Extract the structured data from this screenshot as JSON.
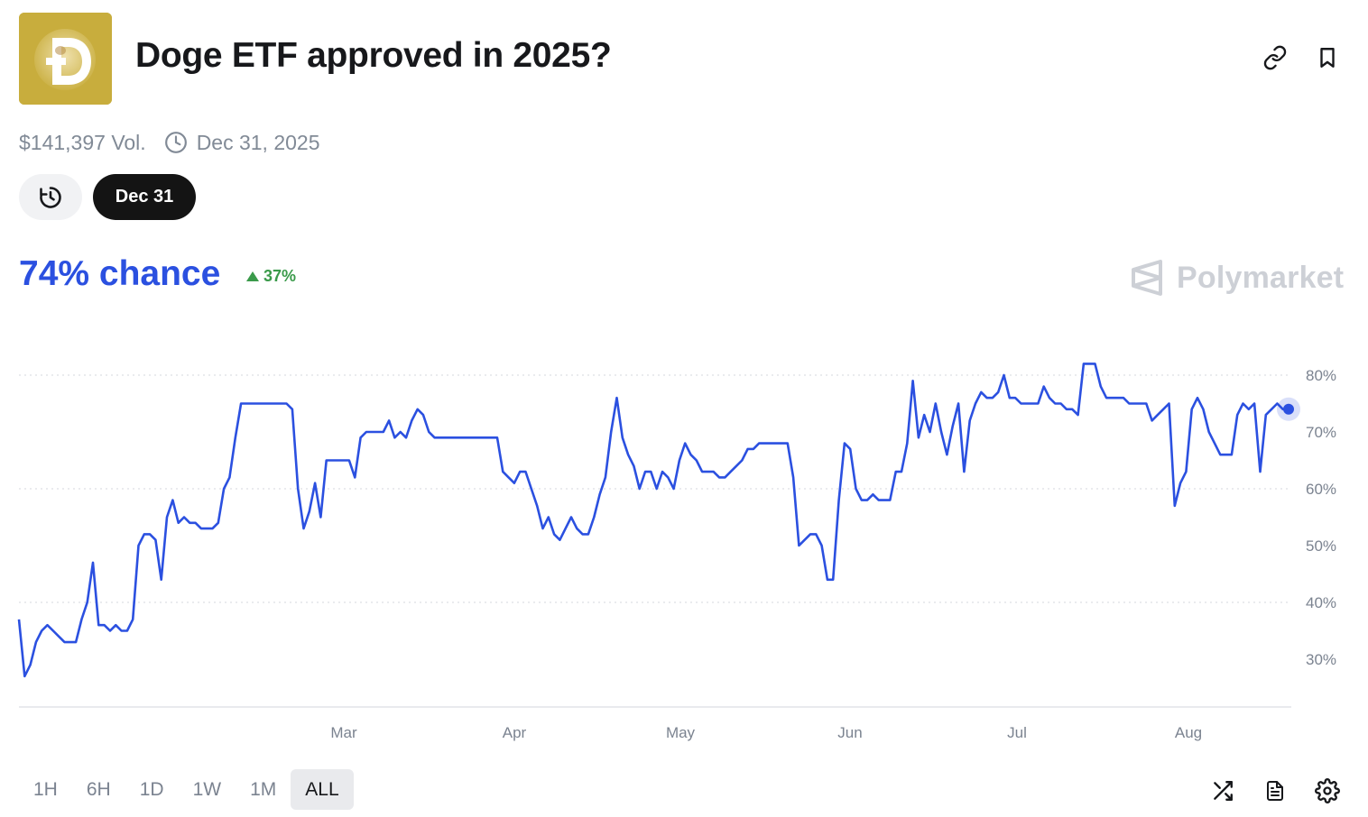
{
  "header": {
    "title": "Doge ETF approved in 2025?",
    "logo_icon": "doge-coin-logo",
    "actions": [
      {
        "name": "link-icon"
      },
      {
        "name": "bookmark-icon"
      }
    ]
  },
  "meta": {
    "volume": "$141,397 Vol.",
    "end_date": "Dec 31, 2025"
  },
  "date_selector": {
    "history_icon": "history-clock-icon",
    "selected": "Dec 31"
  },
  "probability": {
    "chance": "74% chance",
    "change": "37%",
    "change_direction": "up"
  },
  "brand": {
    "name": "Polymarket"
  },
  "colors": {
    "line": "#2b50e0",
    "chance": "#2b50e0",
    "up": "#3a9a4a"
  },
  "chart_data": {
    "type": "line",
    "x_axis_ticks": [
      "Mar",
      "Apr",
      "May",
      "Jun",
      "Jul",
      "Aug"
    ],
    "y_axis_ticks": [
      "80%",
      "70%",
      "60%",
      "50%",
      "40%",
      "30%"
    ],
    "ylim": [
      20,
      85
    ],
    "grid": true,
    "series": [
      {
        "values": [
          37,
          27,
          29,
          33,
          35,
          36,
          35,
          34,
          33,
          33,
          33,
          37,
          40,
          47,
          36,
          36,
          35,
          36,
          35,
          35,
          37,
          50,
          52,
          52,
          51,
          44,
          55,
          58,
          54,
          55,
          54,
          54,
          53,
          53,
          53,
          54,
          60,
          62,
          69,
          75,
          75,
          75,
          75,
          75,
          75,
          75,
          75,
          75,
          74,
          60,
          53,
          56,
          61,
          55,
          65,
          65,
          65,
          65,
          65,
          62,
          69,
          70,
          70,
          70,
          70,
          72,
          69,
          70,
          69,
          72,
          74,
          73,
          70,
          69,
          69,
          69,
          69,
          69,
          69,
          69,
          69,
          69,
          69,
          69,
          69,
          63,
          62,
          61,
          63,
          63,
          60,
          57,
          53,
          55,
          52,
          51,
          53,
          55,
          53,
          52,
          52,
          55,
          59,
          62,
          70,
          76,
          69,
          66,
          64,
          60,
          63,
          63,
          60,
          63,
          62,
          60,
          65,
          68,
          66,
          65,
          63,
          63,
          63,
          62,
          62,
          63,
          64,
          65,
          67,
          67,
          68,
          68,
          68,
          68,
          68,
          68,
          62,
          50,
          51,
          52,
          52,
          50,
          44,
          44,
          58,
          68,
          67,
          60,
          58,
          58,
          59,
          58,
          58,
          58,
          63,
          63,
          68,
          79,
          69,
          73,
          70,
          75,
          70,
          66,
          71,
          75,
          63,
          72,
          75,
          77,
          76,
          76,
          77,
          80,
          76,
          76,
          75,
          75,
          75,
          75,
          78,
          76,
          75,
          75,
          74,
          74,
          73,
          82,
          82,
          82,
          78,
          76,
          76,
          76,
          76,
          75,
          75,
          75,
          75,
          72,
          73,
          74,
          75,
          57,
          61,
          63,
          74,
          76,
          74,
          70,
          68,
          66,
          66,
          66,
          73,
          75,
          74,
          75,
          63,
          73,
          74,
          75,
          74,
          74
        ]
      }
    ]
  },
  "timeframes": [
    "1H",
    "6H",
    "1D",
    "1W",
    "1M",
    "ALL"
  ],
  "active_timeframe": "ALL",
  "tools": [
    {
      "name": "shuffle-icon"
    },
    {
      "name": "document-icon"
    },
    {
      "name": "settings-gear-icon"
    }
  ]
}
